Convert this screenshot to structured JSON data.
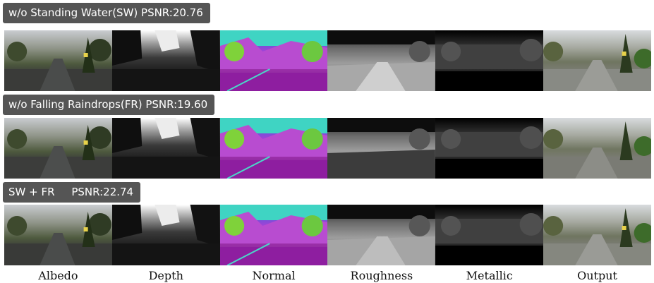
{
  "rows": [
    {
      "label": "w/o Standing Water(SW) PSNR:20.76"
    },
    {
      "label": "w/o Falling Raindrops(FR) PSNR:19.60"
    },
    {
      "label": "SW + FR     PSNR:22.74"
    }
  ],
  "columns": [
    "Albedo",
    "Depth",
    "Normal",
    "Roughness",
    "Metallic",
    "Output"
  ]
}
